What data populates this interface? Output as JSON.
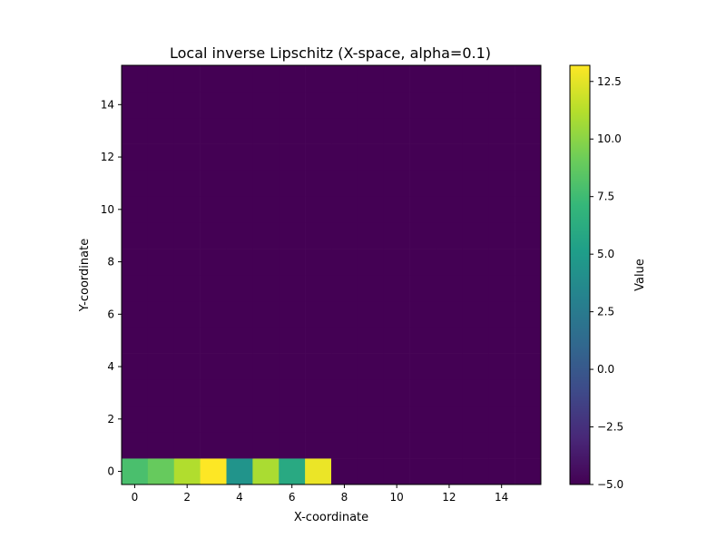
{
  "chart_data": {
    "type": "heatmap",
    "title": "Local inverse Lipschitz (X-space, alpha=0.1)",
    "xlabel": "X-coordinate",
    "ylabel": "Y-coordinate",
    "colorbar_label": "Value",
    "colormap": "viridis",
    "grid_size": [
      16,
      16
    ],
    "x_ticks": [
      0,
      2,
      4,
      6,
      8,
      10,
      12,
      14
    ],
    "y_ticks": [
      0,
      2,
      4,
      6,
      8,
      10,
      12,
      14
    ],
    "colorbar_ticks": [
      -5.0,
      -2.5,
      0.0,
      2.5,
      5.0,
      7.5,
      10.0,
      12.5
    ],
    "colorbar_tick_labels": [
      "−5.0",
      "−2.5",
      "0.0",
      "2.5",
      "5.0",
      "7.5",
      "10.0",
      "12.5"
    ],
    "vmin": -5.0,
    "vmax": 13.2,
    "background_value": -5.0,
    "row0_values": [
      7.9,
      8.9,
      11.1,
      13.2,
      4.4,
      10.9,
      6.0,
      12.7,
      -5.0,
      -5.0,
      -5.0,
      -5.0,
      -5.0,
      -5.0,
      -5.0,
      -5.0
    ]
  }
}
